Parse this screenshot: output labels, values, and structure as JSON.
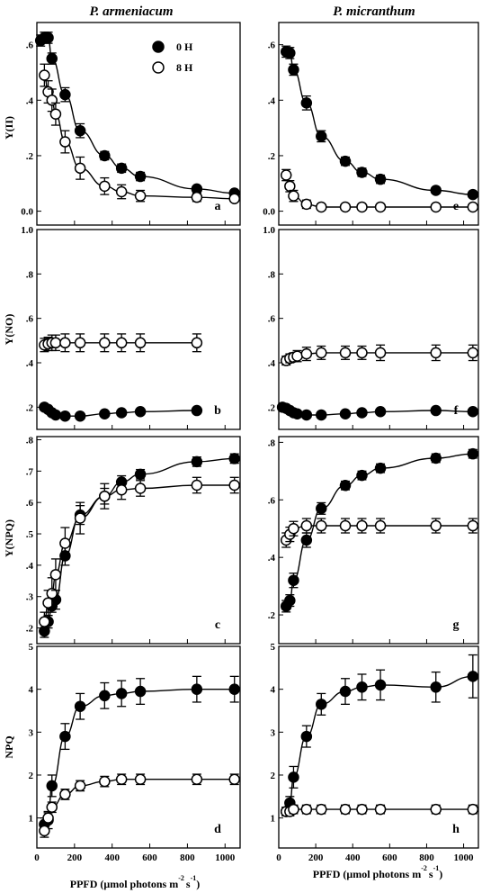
{
  "column_titles": [
    "P. armeniacum",
    "P. micranthum"
  ],
  "x_axis": {
    "label_main": "PPFD (μmol photons m",
    "sup1": "-2",
    "label_mid": "s",
    "sup2": "-1",
    "label_end": ")",
    "ticks": [
      0,
      200,
      400,
      600,
      800,
      1000
    ],
    "tick_labels": [
      "0",
      "200",
      "400",
      "600",
      "800",
      "1000"
    ],
    "range": [
      0,
      1080
    ]
  },
  "legend": {
    "series": [
      "0 H",
      "8 H"
    ]
  },
  "chart_data": [
    {
      "type": "scatter",
      "panel": "a",
      "ylabel": "Y(II)",
      "ylim": [
        -0.05,
        0.68
      ],
      "yticks": [
        0.0,
        0.2,
        0.4,
        0.6
      ],
      "ytick_labels": [
        "0.0",
        ".2",
        ".4",
        ".6"
      ],
      "x": [
        20,
        40,
        60,
        80,
        100,
        150,
        230,
        360,
        450,
        550,
        850,
        1050
      ],
      "series": [
        {
          "name": "0 H",
          "filled": true,
          "y": [
            0.615,
            0.625,
            0.625,
            0.55,
            null,
            0.42,
            0.29,
            0.2,
            0.155,
            0.125,
            0.08,
            0.065
          ],
          "err": [
            0.02,
            0.02,
            0.02,
            0.02,
            null,
            0.025,
            0.025,
            0.015,
            0.015,
            0.015,
            0.01,
            0.01
          ]
        },
        {
          "name": "8 H",
          "filled": false,
          "y": [
            null,
            0.49,
            0.43,
            0.4,
            0.35,
            0.25,
            0.155,
            0.09,
            0.07,
            0.055,
            0.05,
            0.045
          ],
          "err": [
            null,
            0.04,
            0.04,
            0.04,
            0.04,
            0.04,
            0.04,
            0.03,
            0.025,
            0.02,
            0.015,
            0.01
          ]
        }
      ]
    },
    {
      "type": "scatter",
      "panel": "e",
      "ylim": [
        -0.05,
        0.68
      ],
      "yticks": [
        0.0,
        0.2,
        0.4,
        0.6
      ],
      "ytick_labels": [
        "0.0",
        ".2",
        ".4",
        ".6"
      ],
      "x": [
        20,
        40,
        60,
        80,
        100,
        150,
        230,
        360,
        450,
        550,
        850,
        1050
      ],
      "series": [
        {
          "name": "0 H",
          "filled": true,
          "y": [
            null,
            0.575,
            0.57,
            0.51,
            null,
            0.39,
            0.27,
            0.18,
            0.14,
            0.115,
            0.075,
            0.06
          ],
          "err": [
            null,
            0.02,
            0.02,
            0.02,
            null,
            0.025,
            0.02,
            0.015,
            0.015,
            0.015,
            0.01,
            0.01
          ]
        },
        {
          "name": "8 H",
          "filled": false,
          "y": [
            null,
            0.13,
            0.09,
            0.055,
            null,
            0.025,
            0.015,
            0.015,
            0.015,
            0.015,
            0.015,
            0.015
          ],
          "err": [
            null,
            0.02,
            0.02,
            0.02,
            null,
            0.015,
            0.01,
            0.005,
            0.005,
            0.005,
            0.005,
            0.005
          ]
        }
      ]
    },
    {
      "type": "scatter",
      "panel": "b",
      "ylabel": "Y(NO)",
      "ylim": [
        0.1,
        1.0
      ],
      "yticks": [
        0.2,
        0.4,
        0.6,
        0.8,
        1.0
      ],
      "ytick_labels": [
        ".2",
        ".4",
        ".6",
        ".8",
        "1.0"
      ],
      "x": [
        40,
        60,
        80,
        100,
        150,
        230,
        360,
        450,
        550,
        850
      ],
      "series": [
        {
          "name": "0 H",
          "filled": true,
          "y": [
            0.2,
            0.19,
            0.175,
            0.165,
            0.16,
            0.16,
            0.17,
            0.175,
            0.18,
            0.185
          ],
          "err": [
            0.008,
            0.008,
            0.008,
            0.008,
            0.008,
            0.008,
            0.008,
            0.008,
            0.008,
            0.008
          ]
        },
        {
          "name": "8 H",
          "filled": false,
          "y": [
            0.48,
            0.485,
            0.49,
            0.49,
            0.49,
            0.49,
            0.49,
            0.49,
            0.49,
            0.49
          ],
          "err": [
            0.03,
            0.03,
            0.035,
            0.035,
            0.04,
            0.04,
            0.04,
            0.04,
            0.04,
            0.04
          ]
        }
      ]
    },
    {
      "type": "scatter",
      "panel": "f",
      "ylim": [
        0.1,
        1.0
      ],
      "yticks": [
        0.2,
        0.4,
        0.6,
        0.8,
        1.0
      ],
      "ytick_labels": [
        ".2",
        ".4",
        ".6",
        ".8",
        "1.0"
      ],
      "x": [
        20,
        40,
        60,
        80,
        100,
        150,
        230,
        360,
        450,
        550,
        850,
        1050
      ],
      "series": [
        {
          "name": "0 H",
          "filled": true,
          "y": [
            0.2,
            0.195,
            0.185,
            0.175,
            0.17,
            0.165,
            0.165,
            0.17,
            0.175,
            0.18,
            0.185,
            0.18
          ],
          "err": [
            0.008,
            0.008,
            0.008,
            0.008,
            0.008,
            0.008,
            0.008,
            0.008,
            0.008,
            0.008,
            0.01,
            0.01
          ]
        },
        {
          "name": "8 H",
          "filled": false,
          "y": [
            null,
            0.41,
            0.42,
            0.425,
            0.43,
            0.44,
            0.445,
            0.445,
            0.445,
            0.445,
            0.445,
            0.445
          ],
          "err": [
            null,
            0.02,
            0.02,
            0.02,
            0.025,
            0.03,
            0.03,
            0.03,
            0.03,
            0.035,
            0.035,
            0.035
          ]
        }
      ]
    },
    {
      "type": "scatter",
      "panel": "c",
      "ylabel": "Y(NPQ)",
      "ylim": [
        0.15,
        0.81
      ],
      "yticks": [
        0.2,
        0.3,
        0.4,
        0.5,
        0.6,
        0.7,
        0.8
      ],
      "ytick_labels": [
        ".2",
        ".3",
        ".4",
        ".5",
        ".6",
        ".7",
        ".8"
      ],
      "x": [
        40,
        60,
        80,
        100,
        150,
        230,
        360,
        450,
        550,
        850,
        1050
      ],
      "series": [
        {
          "name": "0 H",
          "filled": true,
          "y": [
            0.19,
            0.22,
            0.27,
            0.29,
            0.43,
            0.56,
            0.62,
            0.665,
            0.69,
            0.73,
            0.74
          ],
          "err": [
            0.02,
            0.02,
            0.02,
            0.03,
            0.03,
            0.03,
            0.025,
            0.02,
            0.015,
            0.015,
            0.015
          ]
        },
        {
          "name": "8 H",
          "filled": false,
          "y": [
            0.22,
            0.28,
            0.31,
            0.37,
            0.47,
            0.55,
            0.62,
            0.64,
            0.645,
            0.655,
            0.655
          ],
          "err": [
            0.03,
            0.04,
            0.05,
            0.05,
            0.05,
            0.05,
            0.04,
            0.03,
            0.025,
            0.025,
            0.025
          ]
        }
      ]
    },
    {
      "type": "scatter",
      "panel": "g",
      "ylim": [
        0.1,
        0.82
      ],
      "yticks": [
        0.2,
        0.4,
        0.6,
        0.8
      ],
      "ytick_labels": [
        ".2",
        ".4",
        ".6",
        ".8"
      ],
      "x": [
        20,
        40,
        60,
        80,
        100,
        150,
        230,
        360,
        450,
        550,
        850,
        1050
      ],
      "series": [
        {
          "name": "0 H",
          "filled": true,
          "y": [
            null,
            0.23,
            0.25,
            0.32,
            null,
            0.46,
            0.57,
            0.65,
            0.685,
            0.71,
            0.745,
            0.76
          ],
          "err": [
            null,
            0.02,
            0.02,
            0.025,
            null,
            0.025,
            0.02,
            0.015,
            0.015,
            0.015,
            0.015,
            0.015
          ]
        },
        {
          "name": "8 H",
          "filled": false,
          "y": [
            null,
            0.46,
            0.48,
            0.5,
            null,
            0.51,
            0.51,
            0.51,
            0.51,
            0.51,
            0.51,
            0.51
          ],
          "err": [
            null,
            0.025,
            0.025,
            0.025,
            null,
            0.025,
            0.025,
            0.025,
            0.025,
            0.025,
            0.025,
            0.025
          ]
        }
      ]
    },
    {
      "type": "scatter",
      "panel": "d",
      "ylabel": "NPQ",
      "ylim": [
        0.3,
        5.0
      ],
      "yticks": [
        1,
        2,
        3,
        4,
        5
      ],
      "ytick_labels": [
        "1",
        "2",
        "3",
        "4",
        "5"
      ],
      "x": [
        40,
        60,
        80,
        100,
        150,
        230,
        360,
        450,
        550,
        850,
        1050
      ],
      "series": [
        {
          "name": "0 H",
          "filled": true,
          "y": [
            0.85,
            0.95,
            1.75,
            null,
            2.9,
            3.6,
            3.85,
            3.9,
            3.95,
            4.0,
            4.0
          ],
          "err": [
            0.15,
            0.2,
            0.25,
            null,
            0.3,
            0.3,
            0.3,
            0.3,
            0.3,
            0.3,
            0.3
          ]
        },
        {
          "name": "8 H",
          "filled": false,
          "y": [
            0.7,
            1.0,
            1.25,
            null,
            1.55,
            1.75,
            1.85,
            1.9,
            1.9,
            1.9,
            1.9
          ],
          "err": [
            0.15,
            0.12,
            0.12,
            null,
            0.12,
            0.12,
            0.12,
            0.12,
            0.12,
            0.12,
            0.12
          ]
        }
      ]
    },
    {
      "type": "scatter",
      "panel": "h",
      "ylim": [
        0.3,
        5.0
      ],
      "yticks": [
        1,
        2,
        3,
        4,
        5
      ],
      "ytick_labels": [
        "1",
        "2",
        "3",
        "4",
        "5"
      ],
      "x": [
        20,
        40,
        60,
        80,
        100,
        150,
        230,
        360,
        450,
        550,
        850,
        1050
      ],
      "series": [
        {
          "name": "0 H",
          "filled": true,
          "y": [
            null,
            1.15,
            1.35,
            1.95,
            null,
            2.9,
            3.65,
            3.95,
            4.05,
            4.1,
            4.05,
            4.3
          ],
          "err": [
            null,
            0.1,
            0.15,
            0.25,
            null,
            0.25,
            0.25,
            0.3,
            0.3,
            0.35,
            0.35,
            0.5
          ]
        },
        {
          "name": "8 H",
          "filled": false,
          "y": [
            null,
            1.15,
            1.15,
            1.2,
            null,
            1.2,
            1.2,
            1.2,
            1.2,
            1.2,
            1.2,
            1.2
          ],
          "err": [
            null,
            0.1,
            0.1,
            0.1,
            null,
            0.1,
            0.1,
            0.1,
            0.1,
            0.1,
            0.1,
            0.1
          ]
        }
      ]
    }
  ]
}
